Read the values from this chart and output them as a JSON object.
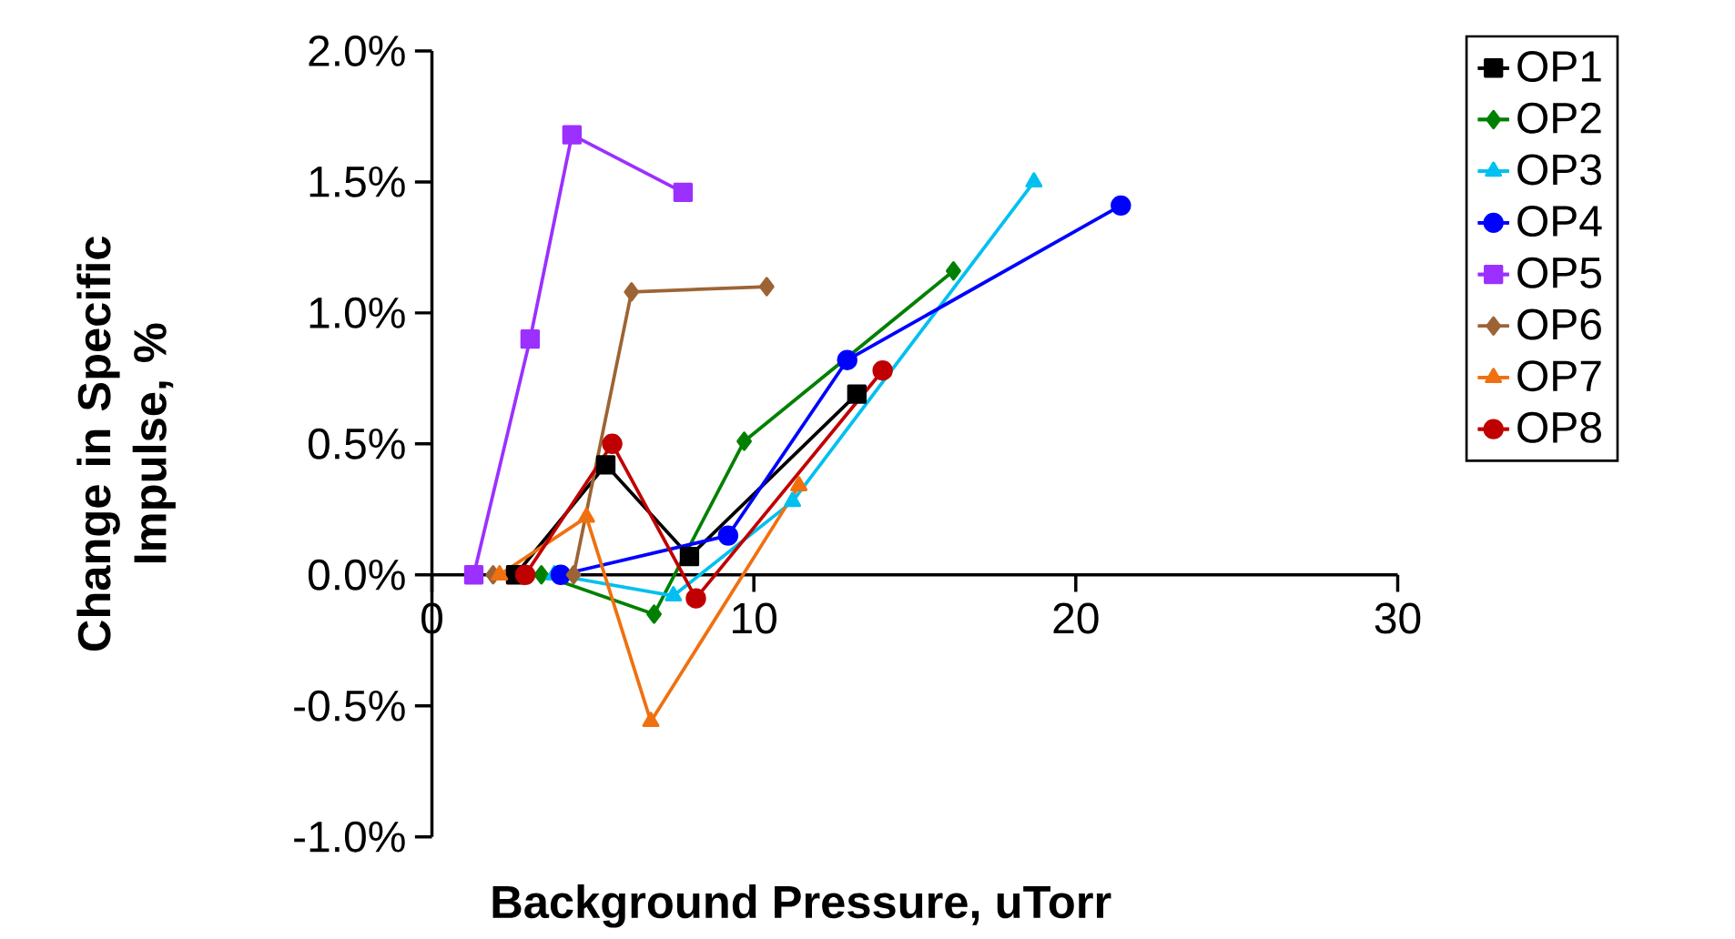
{
  "chart_data": {
    "type": "line",
    "xlabel": "Background Pressure, uTorr",
    "ylabel": "Change in Specific Impulse, %",
    "xlim": [
      0,
      30
    ],
    "xticks": [
      0,
      10,
      20,
      30
    ],
    "ylim": [
      -1.0,
      2.0
    ],
    "yticks": [
      {
        "value": -1.0,
        "label": "-1.0%"
      },
      {
        "value": -0.5,
        "label": "-0.5%"
      },
      {
        "value": 0.0,
        "label": "0.0%"
      },
      {
        "value": 0.5,
        "label": "0.5%"
      },
      {
        "value": 1.0,
        "label": "1.0%"
      },
      {
        "value": 1.5,
        "label": "1.5%"
      },
      {
        "value": 2.0,
        "label": "2.0%"
      }
    ],
    "grid": false,
    "legend": "right",
    "line_style": "solid",
    "series": [
      {
        "name": "OP1",
        "color": "#000000",
        "marker": "square",
        "x": [
          2.6,
          5.4,
          8.0,
          13.2
        ],
        "values": [
          0.0,
          0.42,
          0.07,
          0.69
        ]
      },
      {
        "name": "OP2",
        "color": "#008000",
        "marker": "diamond",
        "x": [
          3.4,
          6.9,
          9.7,
          16.2
        ],
        "values": [
          0.0,
          -0.15,
          0.51,
          1.16
        ]
      },
      {
        "name": "OP3",
        "color": "#00c0f0",
        "marker": "triangle",
        "x": [
          3.8,
          7.5,
          11.2,
          18.7
        ],
        "values": [
          0.0,
          -0.08,
          0.28,
          1.5
        ]
      },
      {
        "name": "OP4",
        "color": "#0000ff",
        "marker": "circle",
        "x": [
          4.0,
          9.2,
          12.9,
          21.4
        ],
        "values": [
          0.0,
          0.15,
          0.82,
          1.41
        ]
      },
      {
        "name": "OP5",
        "color": "#9b30ff",
        "marker": "square",
        "x": [
          1.3,
          3.05,
          4.35,
          7.8
        ],
        "values": [
          0.0,
          0.9,
          1.68,
          1.46
        ]
      },
      {
        "name": "OP6",
        "color": "#9c6434",
        "marker": "diamond",
        "x": [
          1.9,
          4.4,
          6.2,
          10.4
        ],
        "values": [
          0.0,
          0.0,
          1.08,
          1.1
        ]
      },
      {
        "name": "OP7",
        "color": "#f07010",
        "marker": "triangle",
        "x": [
          2.1,
          4.8,
          6.8,
          11.4
        ],
        "values": [
          0.0,
          0.22,
          -0.56,
          0.34
        ]
      },
      {
        "name": "OP8",
        "color": "#c00000",
        "marker": "circle",
        "x": [
          2.9,
          5.6,
          8.2,
          14.0
        ],
        "values": [
          0.0,
          0.5,
          -0.09,
          0.78
        ]
      }
    ]
  }
}
